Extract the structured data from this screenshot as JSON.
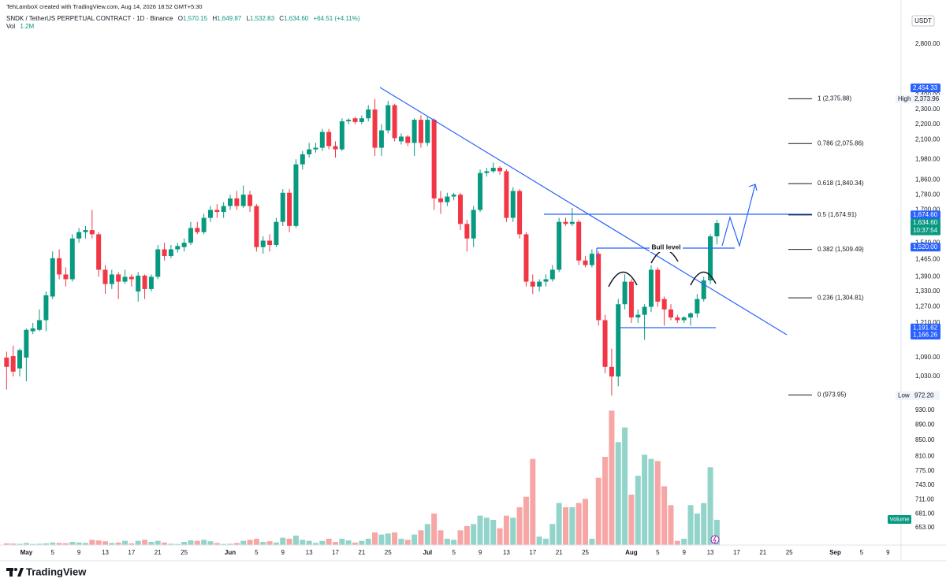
{
  "header": {
    "credit": "TehLamboX created with TradingView.com, Aug 14, 2026 18:52 GMT+5:30",
    "symbol": "SNDK / TetherUS PERPETUAL CONTRACT · 1D · Binance",
    "ohlc": [
      {
        "key": "O",
        "value": "1,570.15"
      },
      {
        "key": "H",
        "value": "1,649.87"
      },
      {
        "key": "L",
        "value": "1,532.83"
      },
      {
        "key": "C",
        "value": "1,634.60"
      }
    ],
    "change": "+64.51 (+4.11%)",
    "volume_key": "Vol",
    "volume_value": "1.2M"
  },
  "chart_data": {
    "type": "candlestick",
    "log_scale": true,
    "currency": "USDT",
    "up_color": "#089981",
    "down_color": "#f23645",
    "up_volume_color": "#92d4c9",
    "down_volume_color": "#f7a6a6",
    "x": [
      "04-28",
      "04-29",
      "04-30",
      "05-01",
      "05-02",
      "05-03",
      "05-04",
      "05-05",
      "05-06",
      "05-07",
      "05-08",
      "05-09",
      "05-10",
      "05-11",
      "05-12",
      "05-13",
      "05-14",
      "05-15",
      "05-16",
      "05-17",
      "05-18",
      "05-19",
      "05-20",
      "05-21",
      "05-22",
      "05-23",
      "05-24",
      "05-25",
      "05-26",
      "05-27",
      "05-28",
      "05-29",
      "05-30",
      "05-31",
      "06-01",
      "06-02",
      "06-03",
      "06-04",
      "06-05",
      "06-06",
      "06-07",
      "06-08",
      "06-09",
      "06-10",
      "06-11",
      "06-12",
      "06-13",
      "06-14",
      "06-15",
      "06-16",
      "06-17",
      "06-18",
      "06-19",
      "06-20",
      "06-21",
      "06-22",
      "06-23",
      "06-24",
      "06-25",
      "06-26",
      "06-27",
      "06-28",
      "06-29",
      "06-30",
      "07-01",
      "07-02",
      "07-03",
      "07-04",
      "07-05",
      "07-06",
      "07-07",
      "07-08",
      "07-09",
      "07-10",
      "07-11",
      "07-12",
      "07-13",
      "07-14",
      "07-15",
      "07-16",
      "07-17",
      "07-18",
      "07-19",
      "07-20",
      "07-21",
      "07-22",
      "07-23",
      "07-24",
      "07-25",
      "07-26",
      "07-27",
      "07-28",
      "07-29",
      "07-30",
      "07-31",
      "08-01",
      "08-02",
      "08-03",
      "08-04",
      "08-05",
      "08-06",
      "08-07",
      "08-08",
      "08-09",
      "08-10",
      "08-11",
      "08-12",
      "08-13",
      "08-14"
    ],
    "open": [
      1090,
      1095,
      1055,
      1090,
      1180,
      1185,
      1220,
      1310,
      1470,
      1400,
      1380,
      1560,
      1590,
      1600,
      1580,
      1420,
      1360,
      1400,
      1370,
      1390,
      1330,
      1395,
      1340,
      1390,
      1510,
      1480,
      1510,
      1520,
      1540,
      1610,
      1590,
      1660,
      1700,
      1690,
      1720,
      1760,
      1720,
      1780,
      1720,
      1520,
      1550,
      1530,
      1640,
      1790,
      1620,
      1950,
      2010,
      2040,
      2050,
      2150,
      2060,
      2040,
      2220,
      2240,
      2215,
      2240,
      2300,
      2050,
      2160,
      2330,
      2090,
      2120,
      2080,
      2230,
      2080,
      2230,
      1760,
      1740,
      1770,
      1780,
      1630,
      1560,
      1700,
      1900,
      1910,
      1930,
      1910,
      1660,
      1800,
      1580,
      1370,
      1350,
      1370,
      1380,
      1420,
      1640,
      1630,
      1640,
      1460,
      1440,
      1490,
      1220,
      1060,
      1030,
      1280,
      1370,
      1230,
      1240,
      1270,
      1420,
      1300,
      1260,
      1230,
      1220,
      1230,
      1245,
      1300,
      1375,
      1570.15
    ],
    "high": [
      1110,
      1130,
      1120,
      1190,
      1210,
      1260,
      1330,
      1500,
      1510,
      1430,
      1580,
      1610,
      1620,
      1700,
      1590,
      1440,
      1420,
      1410,
      1420,
      1400,
      1410,
      1400,
      1400,
      1530,
      1540,
      1530,
      1540,
      1560,
      1640,
      1640,
      1680,
      1720,
      1730,
      1740,
      1780,
      1800,
      1830,
      1800,
      1730,
      1570,
      1580,
      1660,
      1810,
      1810,
      1980,
      2030,
      2080,
      2080,
      2170,
      2170,
      2090,
      2240,
      2240,
      2250,
      2260,
      2330,
      2373.96,
      2200,
      2360,
      2340,
      2140,
      2130,
      2240,
      2260,
      2250,
      2240,
      1800,
      1790,
      1790,
      1790,
      1650,
      1720,
      1920,
      1930,
      1960,
      1940,
      1920,
      1820,
      1810,
      1590,
      1400,
      1380,
      1400,
      1440,
      1660,
      1660,
      1710,
      1650,
      1480,
      1510,
      1500,
      1240,
      1120,
      1300,
      1400,
      1380,
      1260,
      1280,
      1440,
      1430,
      1310,
      1280,
      1240,
      1235,
      1250,
      1320,
      1390,
      1580,
      1649.87
    ],
    "low": [
      990,
      1030,
      1030,
      1015,
      1170,
      1180,
      1180,
      1300,
      1380,
      1350,
      1370,
      1540,
      1560,
      1560,
      1390,
      1320,
      1340,
      1300,
      1360,
      1350,
      1290,
      1300,
      1330,
      1380,
      1460,
      1470,
      1495,
      1500,
      1530,
      1580,
      1580,
      1640,
      1660,
      1660,
      1700,
      1700,
      1710,
      1690,
      1500,
      1490,
      1500,
      1520,
      1620,
      1590,
      1610,
      1920,
      1990,
      2020,
      2030,
      2040,
      1990,
      2030,
      2200,
      2200,
      2200,
      2220,
      2000,
      2000,
      2140,
      2090,
      2070,
      2060,
      2000,
      2050,
      2060,
      1700,
      1680,
      1720,
      1750,
      1600,
      1500,
      1520,
      1690,
      1880,
      1900,
      1890,
      1640,
      1640,
      1560,
      1350,
      1320,
      1330,
      1350,
      1370,
      1410,
      1620,
      1620,
      1440,
      1430,
      1430,
      1200,
      1040,
      972.2,
      1000,
      1260,
      1210,
      1210,
      1150,
      1250,
      1270,
      1200,
      1220,
      1210,
      1210,
      1200,
      1230,
      1290,
      1360,
      1532.83
    ],
    "close": [
      1060,
      1045,
      1115,
      1185,
      1190,
      1220,
      1315,
      1470,
      1400,
      1380,
      1560,
      1590,
      1600,
      1580,
      1420,
      1360,
      1400,
      1370,
      1390,
      1380,
      1395,
      1340,
      1390,
      1510,
      1480,
      1510,
      1525,
      1540,
      1610,
      1590,
      1660,
      1700,
      1690,
      1720,
      1760,
      1720,
      1780,
      1720,
      1520,
      1550,
      1530,
      1640,
      1790,
      1620,
      1950,
      2010,
      2040,
      2050,
      2150,
      2060,
      2040,
      2220,
      2230,
      2215,
      2240,
      2300,
      2050,
      2160,
      2330,
      2110,
      2120,
      2080,
      2230,
      2080,
      2230,
      1760,
      1740,
      1770,
      1780,
      1630,
      1560,
      1700,
      1900,
      1910,
      1930,
      1910,
      1660,
      1800,
      1580,
      1370,
      1350,
      1370,
      1380,
      1420,
      1640,
      1630,
      1640,
      1460,
      1440,
      1490,
      1220,
      1060,
      1030,
      1280,
      1370,
      1230,
      1240,
      1270,
      1420,
      1290,
      1260,
      1230,
      1220,
      1230,
      1245,
      1300,
      1375,
      1570,
      1634.6
    ],
    "volume": [
      0.08,
      0.07,
      0.06,
      0.1,
      0.05,
      0.06,
      0.08,
      0.12,
      0.1,
      0.09,
      0.15,
      0.12,
      0.1,
      0.25,
      0.22,
      0.18,
      0.1,
      0.12,
      0.2,
      0.08,
      0.2,
      0.25,
      0.15,
      0.2,
      0.12,
      0.06,
      0.05,
      0.15,
      0.22,
      0.2,
      0.25,
      0.18,
      0.1,
      0.05,
      0.06,
      0.1,
      0.2,
      0.25,
      0.3,
      0.15,
      0.18,
      0.12,
      0.35,
      0.3,
      0.45,
      0.25,
      0.2,
      0.1,
      0.2,
      0.3,
      0.15,
      0.3,
      0.22,
      0.12,
      0.2,
      0.3,
      0.6,
      0.5,
      0.55,
      0.6,
      0.3,
      0.25,
      0.5,
      0.7,
      1.0,
      1.5,
      0.7,
      0.3,
      0.25,
      0.7,
      0.9,
      1.0,
      1.4,
      1.3,
      1.2,
      0.8,
      1.4,
      1.3,
      1.8,
      2.3,
      4.1,
      0.4,
      0.3,
      1.0,
      2.0,
      1.8,
      1.8,
      2.0,
      2.2,
      0.3,
      3.2,
      4.2,
      6.4,
      4.9,
      5.6,
      2.4,
      3.3,
      4.3,
      4.1,
      4.0,
      2.8,
      1.9,
      0.2,
      0.3,
      1.9,
      1.5,
      2.0,
      3.7,
      1.2
    ],
    "vol_lim": [
      0,
      25.2
    ],
    "xlim": [
      "04-27",
      "09-11"
    ],
    "xticks": [
      {
        "value": "05-01",
        "label": "May"
      },
      {
        "value": "05-05",
        "label": "5"
      },
      {
        "value": "05-09",
        "label": "9"
      },
      {
        "value": "05-13",
        "label": "13"
      },
      {
        "value": "05-17",
        "label": "17"
      },
      {
        "value": "05-21",
        "label": "21"
      },
      {
        "value": "05-25",
        "label": "25"
      },
      {
        "value": "06-01",
        "label": "Jun"
      },
      {
        "value": "06-05",
        "label": "5"
      },
      {
        "value": "06-09",
        "label": "9"
      },
      {
        "value": "06-13",
        "label": "13"
      },
      {
        "value": "06-17",
        "label": "17"
      },
      {
        "value": "06-21",
        "label": "21"
      },
      {
        "value": "06-25",
        "label": "25"
      },
      {
        "value": "07-01",
        "label": "Jul"
      },
      {
        "value": "07-05",
        "label": "5"
      },
      {
        "value": "07-09",
        "label": "9"
      },
      {
        "value": "07-13",
        "label": "13"
      },
      {
        "value": "07-17",
        "label": "17"
      },
      {
        "value": "07-21",
        "label": "21"
      },
      {
        "value": "07-25",
        "label": "25"
      },
      {
        "value": "08-01",
        "label": "Aug"
      },
      {
        "value": "08-05",
        "label": "5"
      },
      {
        "value": "08-09",
        "label": "9"
      },
      {
        "value": "08-13",
        "label": "13"
      },
      {
        "value": "08-17",
        "label": "17"
      },
      {
        "value": "08-21",
        "label": "21"
      },
      {
        "value": "08-25",
        "label": "25"
      },
      {
        "value": "09-01",
        "label": "Sep"
      },
      {
        "value": "09-05",
        "label": "5"
      },
      {
        "value": "09-09",
        "label": "9"
      }
    ],
    "ylim": [
      620,
      3050
    ],
    "yticks": [
      {
        "value": 2800,
        "label": "2,800.00"
      },
      {
        "value": 2400,
        "label": "2,400.00"
      },
      {
        "value": 2300,
        "label": "2,300.00"
      },
      {
        "value": 2200,
        "label": "2,200.00"
      },
      {
        "value": 2100,
        "label": "2,100.00"
      },
      {
        "value": 1980,
        "label": "1,980.00"
      },
      {
        "value": 1860,
        "label": "1,860.00"
      },
      {
        "value": 1780,
        "label": "1,780.00"
      },
      {
        "value": 1700,
        "label": "1,700.00"
      },
      {
        "value": 1540,
        "label": "1,540.00"
      },
      {
        "value": 1465,
        "label": "1,465.00"
      },
      {
        "value": 1390,
        "label": "1,390.00"
      },
      {
        "value": 1330,
        "label": "1,330.00"
      },
      {
        "value": 1270,
        "label": "1,270.00"
      },
      {
        "value": 1210,
        "label": "1,210.00"
      },
      {
        "value": 1090,
        "label": "1,090.00"
      },
      {
        "value": 1030,
        "label": "1,030.00"
      },
      {
        "value": 930,
        "label": "930.00"
      },
      {
        "value": 890,
        "label": "890.00"
      },
      {
        "value": 850,
        "label": "850.00"
      },
      {
        "value": 810,
        "label": "810.00"
      },
      {
        "value": 775,
        "label": "775.00"
      },
      {
        "value": 743,
        "label": "743.00"
      },
      {
        "value": 711,
        "label": "711.00"
      },
      {
        "value": 681,
        "label": "681.00"
      },
      {
        "value": 653,
        "label": "653.00"
      }
    ],
    "fib_levels": [
      {
        "value": 2375.88,
        "label": "1 (2,375.88)"
      },
      {
        "value": 2075.86,
        "label": "0.786 (2,075.86)"
      },
      {
        "value": 1840.34,
        "label": "0.618 (1,840.34)"
      },
      {
        "value": 1674.91,
        "label": "0.5 (1,674.91)"
      },
      {
        "value": 1509.49,
        "label": "0.382 (1,509.49)"
      },
      {
        "value": 1304.81,
        "label": "0.236 (1,304.81)"
      },
      {
        "value": 973.95,
        "label": "0 (973.95)"
      }
    ],
    "price_labels": [
      {
        "value": 2454.33,
        "label": "2,454.33",
        "color": "#2962ff"
      },
      {
        "value": 1674.6,
        "label": "1,674.60",
        "color": "#2962ff"
      },
      {
        "value": 1520,
        "label": "1,520.00",
        "color": "#2962ff"
      },
      {
        "value": 1191.62,
        "label": "1,191.62",
        "color": "#2962ff"
      },
      {
        "value": 1166.26,
        "label": "1,166.26",
        "color": "#2962ff"
      }
    ],
    "last_price": {
      "value": 1634.6,
      "label": "1,634.60",
      "countdown": "10:37:54",
      "color": "#089981"
    },
    "high_marker": {
      "text": "High",
      "value": 2373.96,
      "label": "2,373.96"
    },
    "low_marker": {
      "text": "Low",
      "value": 972.2,
      "label": "972.20"
    },
    "annotations": {
      "bull_level": "Bull level"
    },
    "volume_badge": "Volume"
  },
  "footer": {
    "brand": "TradingView"
  }
}
